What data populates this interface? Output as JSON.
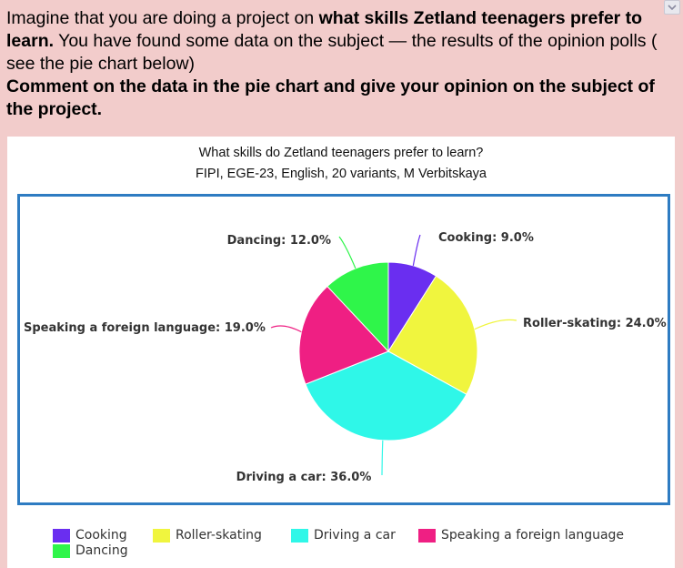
{
  "task": {
    "part1": "Imagine that you are doing a project on ",
    "part2_bold": "what skills Zetland teenagers prefer to learn.",
    "part3": " You have  found some data on the subject — the results of the opinion polls ( see the pie chart below)",
    "part4_bold": "Comment on the data in the pie chart and give your opinion on  the subject of the project."
  },
  "chart_data": {
    "type": "pie",
    "title": "What skills do Zetland teenagers prefer to learn?",
    "subtitle": "FIPI, EGE-23, English, 20 variants, M Verbitskaya",
    "slices": [
      {
        "name": "Cooking",
        "value": 9.0,
        "label": "Cooking: 9.0%",
        "color": "#6a2ef0"
      },
      {
        "name": "Roller-skating",
        "value": 24.0,
        "label": "Roller-skating: 24.0%",
        "color": "#f0f53e"
      },
      {
        "name": "Driving a car",
        "value": 36.0,
        "label": "Driving a car: 36.0%",
        "color": "#2ff7e8"
      },
      {
        "name": "Speaking a foreign language",
        "value": 19.0,
        "label": "Speaking a foreign language: 19.0%",
        "color": "#ef1f83"
      },
      {
        "name": "Dancing",
        "value": 12.0,
        "label": "Dancing: 12.0%",
        "color": "#2ff54a"
      }
    ],
    "legend_position": "bottom"
  },
  "legend": [
    {
      "label": "Cooking",
      "color": "#6a2ef0"
    },
    {
      "label": "Roller-skating",
      "color": "#f0f53e"
    },
    {
      "label": "Driving a car",
      "color": "#2ff7e8"
    },
    {
      "label": "Speaking a foreign language",
      "color": "#ef1f83"
    },
    {
      "label": "Dancing",
      "color": "#2ff54a"
    }
  ]
}
